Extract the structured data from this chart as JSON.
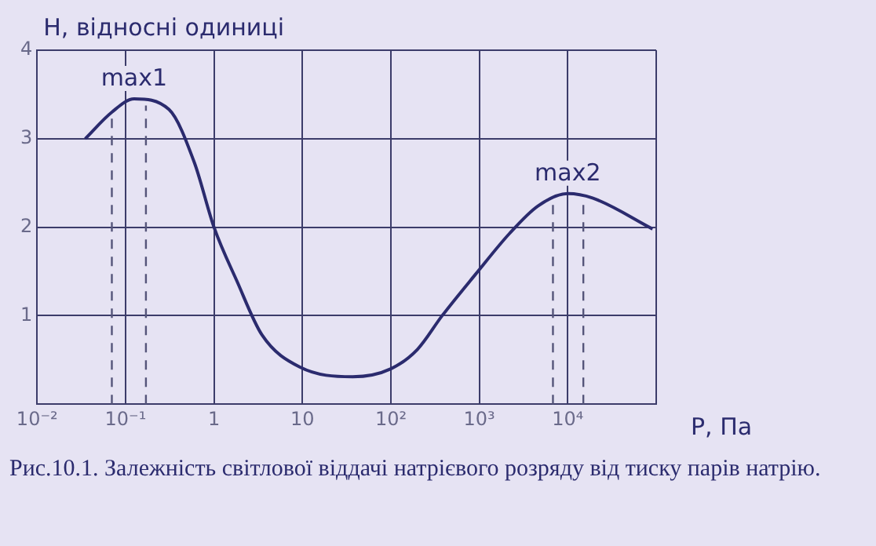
{
  "chart_data": {
    "type": "line",
    "xlabel": "P, Па",
    "ylabel": "H, відносні одиниці",
    "log": "x",
    "x": [
      0.035,
      0.07,
      0.125,
      0.31,
      0.6,
      1,
      1.8,
      3.5,
      9.3,
      37,
      100,
      200,
      380,
      910,
      2200,
      4600,
      10000,
      19000,
      91000
    ],
    "series": [
      {
        "color": "#2b2b6e",
        "values": [
          3.0,
          3.3,
          3.45,
          3.33,
          2.73,
          2.0,
          1.4,
          0.78,
          0.42,
          0.31,
          0.4,
          0.62,
          1.0,
          1.47,
          1.93,
          2.24,
          2.38,
          2.33,
          1.98
        ]
      }
    ],
    "xlim": [
      0.01,
      100000
    ],
    "xticks": [
      {
        "value": 0.01,
        "label": "10⁻²"
      },
      {
        "value": 0.1,
        "label": "10⁻¹"
      },
      1,
      10,
      {
        "value": 100,
        "label": "10²"
      },
      {
        "value": 1000,
        "label": "10³"
      },
      {
        "value": 10000,
        "label": "10⁴"
      },
      {
        "value": 100000,
        "label": null
      }
    ],
    "ylim": [
      0,
      4
    ],
    "yticks": [
      1,
      2,
      3,
      4
    ],
    "grid": true,
    "legend": false,
    "marker": "none",
    "line_style": "solid",
    "ref_lines": [
      {
        "axis": "x",
        "value": 0.07,
        "line_style": "dashed",
        "color": "#55557a"
      },
      {
        "axis": "x",
        "value": 0.17,
        "line_style": "dashed",
        "color": "#55557a"
      },
      {
        "axis": "x",
        "value": 6800,
        "line_style": "dashed",
        "color": "#55557a"
      },
      {
        "axis": "x",
        "value": 15000,
        "line_style": "dashed",
        "color": "#55557a"
      }
    ],
    "annotations": [
      {
        "text": "max1",
        "x": 0.125,
        "y": 3.45
      },
      {
        "text": "max2",
        "x": 10000,
        "y": 2.38
      },
      "Рис.10.1. Залежність світлової віддачі натрієвого розряду від тиску парів натрію."
    ]
  }
}
